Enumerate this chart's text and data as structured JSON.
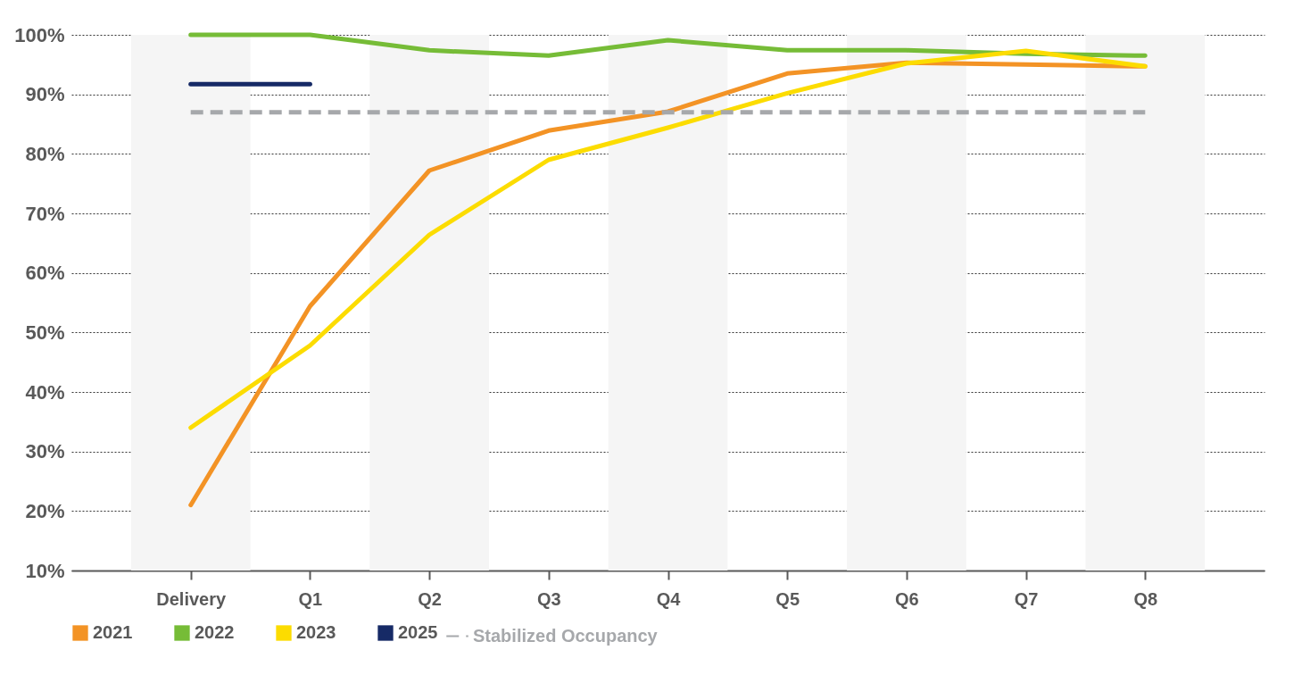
{
  "chart_data": {
    "type": "line",
    "categories": [
      "Delivery",
      "Q1",
      "Q2",
      "Q3",
      "Q4",
      "Q5",
      "Q6",
      "Q7",
      "Q8"
    ],
    "series": [
      {
        "name": "2021",
        "color": "#f39325",
        "values": [
          21,
          54.4,
          77.2,
          83.9,
          87.1,
          93.5,
          95.3,
          95,
          94.7
        ]
      },
      {
        "name": "2022",
        "color": "#76bc37",
        "values": [
          100,
          100,
          97.4,
          96.5,
          99.1,
          97.4,
          97.4,
          96.8,
          96.5
        ]
      },
      {
        "name": "2023",
        "color": "#fcdc00",
        "values": [
          34,
          47.8,
          66.4,
          79,
          84.4,
          90.2,
          95.2,
          97.3,
          94.7
        ]
      },
      {
        "name": "2025",
        "color": "#162a66",
        "values": [
          91.7,
          91.7,
          null,
          null,
          null,
          null,
          null,
          null,
          null
        ]
      }
    ],
    "ylim": [
      10,
      100
    ],
    "yticks": [
      {
        "value": 10,
        "label": "10%"
      },
      {
        "value": 20,
        "label": "20%"
      },
      {
        "value": 30,
        "label": "30%"
      },
      {
        "value": 40,
        "label": "40%"
      },
      {
        "value": 50,
        "label": "50%"
      },
      {
        "value": 60,
        "label": "60%"
      },
      {
        "value": 70,
        "label": "70%"
      },
      {
        "value": 80,
        "label": "80%"
      },
      {
        "value": 90,
        "label": "90%"
      },
      {
        "value": 100,
        "label": "100%"
      }
    ],
    "grid": "y",
    "legend": "bottom",
    "marker": "none",
    "line_style": "solid",
    "ref_lines": [
      {
        "axis": "y",
        "value": 87,
        "label": "Stabilized Occupancy",
        "color": "#a6a8ab",
        "line_style": "dashed"
      }
    ],
    "bands": [
      {
        "axis": "x",
        "from": "Delivery",
        "to": "Delivery",
        "color": "#f5f5f5"
      },
      {
        "axis": "x",
        "from": "Q2",
        "to": "Q2",
        "color": "#f5f5f5"
      },
      {
        "axis": "x",
        "from": "Q4",
        "to": "Q4",
        "color": "#f5f5f5"
      },
      {
        "axis": "x",
        "from": "Q6",
        "to": "Q6",
        "color": "#f5f5f5"
      },
      {
        "axis": "x",
        "from": "Q8",
        "to": "Q8",
        "color": "#f5f5f5"
      }
    ]
  }
}
